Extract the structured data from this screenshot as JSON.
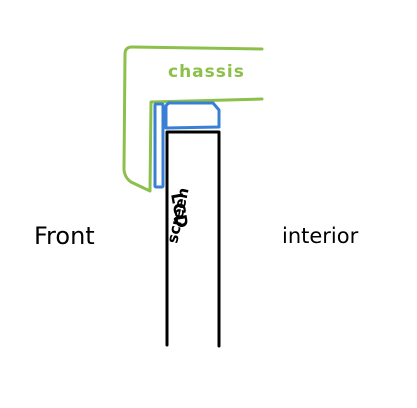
{
  "labels": {
    "chassis": "chassis",
    "front": "Front",
    "interior": "interior",
    "lcd": "LCD",
    "screen": "screen"
  },
  "colors": {
    "chassis": "#8cc04b",
    "bracket": "#3a7fd6",
    "ink": "#000000",
    "background": "#ffffff"
  }
}
